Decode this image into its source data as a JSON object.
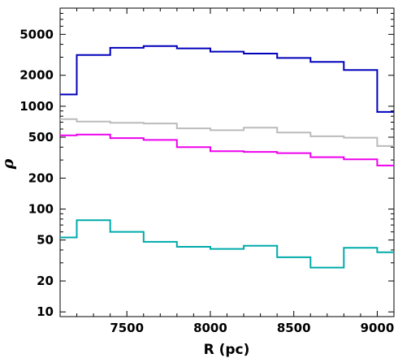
{
  "chart_data": {
    "type": "line",
    "step": true,
    "xlabel": "R (pc)",
    "ylabel": "ρ",
    "xlim": [
      7100,
      9100
    ],
    "ylim": [
      9,
      9000
    ],
    "yscale": "log",
    "x_ticks": [
      7500,
      8000,
      8500,
      9000
    ],
    "x_tick_labels": [
      "7500",
      "8000",
      "8500",
      "9000"
    ],
    "y_ticks": [
      10,
      20,
      50,
      100,
      200,
      500,
      1000,
      2000,
      5000
    ],
    "y_tick_labels": [
      "10",
      "20",
      "50",
      "100",
      "200",
      "500",
      "1000",
      "2000",
      "5000"
    ],
    "bin_edges": [
      7100,
      7200,
      7400,
      7600,
      7800,
      8000,
      8200,
      8400,
      8600,
      8800,
      9000,
      9100
    ],
    "series": [
      {
        "color": "#0000bb",
        "values": [
          1300,
          3150,
          3700,
          3850,
          3650,
          3400,
          3250,
          2950,
          2700,
          2250,
          880
        ]
      },
      {
        "color": "#bbbbbb",
        "values": [
          750,
          710,
          690,
          680,
          610,
          585,
          620,
          555,
          510,
          495,
          410
        ]
      },
      {
        "color": "#ee00ee",
        "values": [
          520,
          530,
          490,
          470,
          400,
          365,
          360,
          350,
          320,
          305,
          265
        ]
      },
      {
        "color": "#00aaaa",
        "values": [
          53,
          78,
          60,
          48,
          43,
          41,
          44,
          34,
          27,
          42,
          38
        ]
      }
    ]
  }
}
